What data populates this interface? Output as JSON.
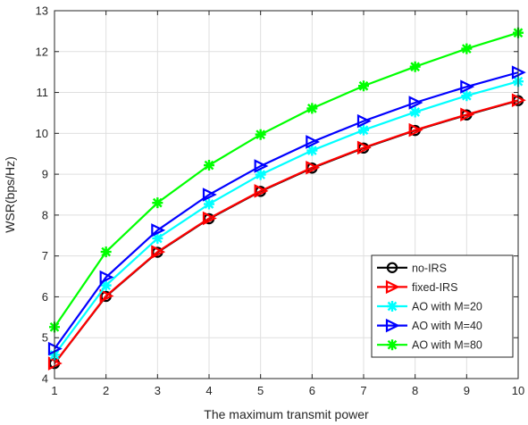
{
  "chart_data": {
    "type": "line",
    "xlabel": "The maximum transmit power",
    "ylabel": "WSR(bps/Hz)",
    "xlim": [
      1,
      10
    ],
    "ylim": [
      4,
      13
    ],
    "xticks": [
      1,
      2,
      3,
      4,
      5,
      6,
      7,
      8,
      9,
      10
    ],
    "yticks": [
      4,
      5,
      6,
      7,
      8,
      9,
      10,
      11,
      12,
      13
    ],
    "grid": true,
    "legend_position": "bottom-right",
    "x": [
      1,
      2,
      3,
      4,
      5,
      6,
      7,
      8,
      9,
      10
    ],
    "series": [
      {
        "name": "no-IRS",
        "color": "#000000",
        "marker": "circle",
        "values": [
          4.37,
          6.01,
          7.09,
          7.91,
          8.58,
          9.15,
          9.64,
          10.07,
          10.45,
          10.8
        ]
      },
      {
        "name": "fixed-IRS",
        "color": "#ff0000",
        "marker": "triangle-right",
        "values": [
          4.37,
          6.02,
          7.1,
          7.92,
          8.59,
          9.16,
          9.65,
          10.08,
          10.46,
          10.81
        ]
      },
      {
        "name": "AO with M=20",
        "color": "#00ffff",
        "marker": "star",
        "values": [
          4.58,
          6.28,
          7.43,
          8.27,
          8.99,
          9.58,
          10.08,
          10.52,
          10.92,
          11.27
        ]
      },
      {
        "name": "AO with M=40",
        "color": "#0000ff",
        "marker": "triangle-right",
        "values": [
          4.73,
          6.48,
          7.63,
          8.5,
          9.2,
          9.79,
          10.3,
          10.75,
          11.14,
          11.49
        ]
      },
      {
        "name": "AO with M=80",
        "color": "#00ff00",
        "marker": "star",
        "values": [
          5.26,
          7.1,
          8.3,
          9.22,
          9.97,
          10.61,
          11.16,
          11.63,
          12.07,
          12.46
        ]
      }
    ]
  }
}
